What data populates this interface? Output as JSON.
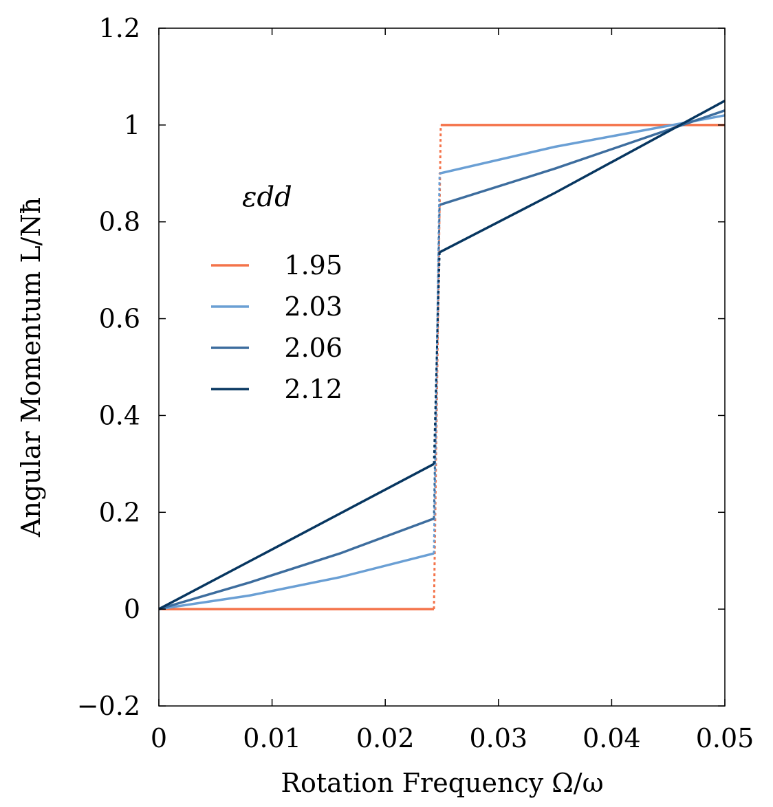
{
  "chart_data": {
    "type": "line",
    "xlabel": "Rotation Frequency Ω/ω",
    "ylabel": "Angular Momentum L/Nħ",
    "xlim": [
      0,
      0.05
    ],
    "ylim": [
      -0.2,
      1.2
    ],
    "xticks": [
      0,
      0.01,
      0.02,
      0.03,
      0.04,
      0.05
    ],
    "xtick_labels": [
      "0",
      "0.01",
      "0.02",
      "0.03",
      "0.04",
      "0.05"
    ],
    "yticks": [
      -0.2,
      0,
      0.2,
      0.4,
      0.6,
      0.8,
      1,
      1.2
    ],
    "ytick_labels": [
      "−0.2",
      "0",
      "0.2",
      "0.4",
      "0.6",
      "0.8",
      "1",
      "1.2"
    ],
    "legend_title": "εdd",
    "legend_position": "upper-left",
    "series": [
      {
        "name": "1.95",
        "color": "#f4734a",
        "lower_branch": [
          [
            0,
            0
          ],
          [
            0.0243,
            0
          ]
        ],
        "jump": [
          [
            0.0243,
            0
          ],
          [
            0.0249,
            1.0
          ]
        ],
        "upper_branch": [
          [
            0.0249,
            1.0
          ],
          [
            0.05,
            1.0
          ]
        ]
      },
      {
        "name": "2.03",
        "color": "#6a9fd4",
        "lower_branch": [
          [
            0,
            0
          ],
          [
            0.008,
            0.028
          ],
          [
            0.016,
            0.066
          ],
          [
            0.0243,
            0.115
          ]
        ],
        "jump": [
          [
            0.0243,
            0.115
          ],
          [
            0.0248,
            0.9
          ]
        ],
        "upper_branch": [
          [
            0.0248,
            0.9
          ],
          [
            0.035,
            0.955
          ],
          [
            0.05,
            1.02
          ]
        ]
      },
      {
        "name": "2.06",
        "color": "#3d6d9e",
        "lower_branch": [
          [
            0,
            0
          ],
          [
            0.008,
            0.055
          ],
          [
            0.016,
            0.115
          ],
          [
            0.0243,
            0.187
          ]
        ],
        "jump": [
          [
            0.0243,
            0.187
          ],
          [
            0.0248,
            0.835
          ]
        ],
        "upper_branch": [
          [
            0.0248,
            0.835
          ],
          [
            0.035,
            0.91
          ],
          [
            0.05,
            1.03
          ]
        ]
      },
      {
        "name": "2.12",
        "color": "#073660",
        "lower_branch": [
          [
            0,
            0
          ],
          [
            0.012,
            0.148
          ],
          [
            0.0243,
            0.3
          ]
        ],
        "jump": [
          [
            0.0243,
            0.3
          ],
          [
            0.0248,
            0.737
          ]
        ],
        "upper_branch": [
          [
            0.0248,
            0.737
          ],
          [
            0.035,
            0.86
          ],
          [
            0.05,
            1.05
          ]
        ]
      }
    ]
  }
}
